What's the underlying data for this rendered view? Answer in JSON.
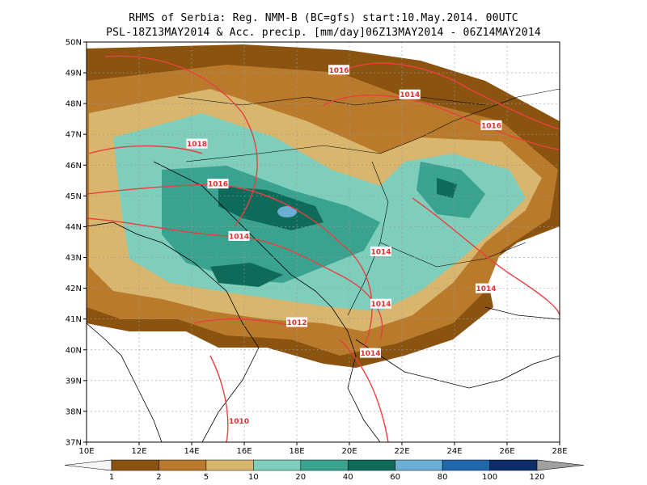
{
  "title": {
    "line1": "RHMS of Serbia: Reg. NMM-B (BC=gfs) start:10.May.2014. 00UTC",
    "line2": "PSL-18Z13MAY2014 & Acc. precip. [mm/day]06Z13MAY2014 - 06Z14MAY2014"
  },
  "map": {
    "lon_range": [
      10,
      28
    ],
    "lat_range": [
      37,
      50
    ],
    "lon_ticks": [
      "10E",
      "12E",
      "14E",
      "16E",
      "18E",
      "20E",
      "22E",
      "24E",
      "26E",
      "28E"
    ],
    "lat_ticks": [
      "37N",
      "38N",
      "39N",
      "40N",
      "41N",
      "42N",
      "43N",
      "44N",
      "45N",
      "46N",
      "47N",
      "48N",
      "49N",
      "50N"
    ],
    "grid": true,
    "isobar_color": "#e84040",
    "isobar_labels": [
      {
        "text": "1016",
        "lon": 19.6,
        "lat": 49.1
      },
      {
        "text": "1014",
        "lon": 22.3,
        "lat": 48.3
      },
      {
        "text": "1016",
        "lon": 25.4,
        "lat": 47.3
      },
      {
        "text": "1018",
        "lon": 14.2,
        "lat": 46.7
      },
      {
        "text": "1016",
        "lon": 15.0,
        "lat": 45.4
      },
      {
        "text": "1014",
        "lon": 15.8,
        "lat": 43.7
      },
      {
        "text": "1014",
        "lon": 21.2,
        "lat": 43.2
      },
      {
        "text": "1014",
        "lon": 25.2,
        "lat": 42.0
      },
      {
        "text": "1014",
        "lon": 21.2,
        "lat": 41.5
      },
      {
        "text": "1012",
        "lon": 18.0,
        "lat": 40.9
      },
      {
        "text": "1014",
        "lon": 20.8,
        "lat": 39.9
      },
      {
        "text": "1010",
        "lon": 15.8,
        "lat": 37.7
      }
    ]
  },
  "legend": {
    "colors": [
      "#8a5410",
      "#b97a2c",
      "#d9b66e",
      "#7fcdbb",
      "#3aa390",
      "#0e6b5a",
      "#6baed6",
      "#2167ac",
      "#0d2e6b"
    ],
    "labels": [
      "1",
      "2",
      "5",
      "10",
      "20",
      "40",
      "60",
      "80",
      "100",
      "120"
    ]
  }
}
